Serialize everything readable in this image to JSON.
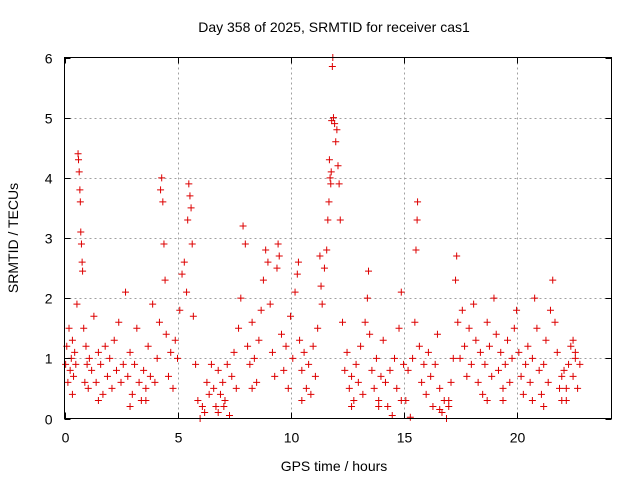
{
  "chart_data": {
    "type": "scatter",
    "title": "Day 358 of 2025, SRMTID for receiver cas1",
    "xlabel": "GPS time / hours",
    "ylabel": "SRMTID / TECUs",
    "xlim": [
      0,
      24.2
    ],
    "ylim": [
      0,
      6
    ],
    "xticks": [
      0,
      5,
      10,
      15,
      20
    ],
    "xtick_labels": [
      "0",
      "5",
      "10",
      "15",
      "20"
    ],
    "yticks": [
      0,
      1,
      2,
      3,
      4,
      5,
      6
    ],
    "ytick_labels": [
      "0",
      "1",
      "2",
      "3",
      "4",
      "5",
      "6"
    ],
    "grid": true,
    "marker": "plus",
    "color": "#dd0000",
    "series": [
      {
        "name": "SRMTID",
        "points": [
          [
            0.05,
            0.9
          ],
          [
            0.1,
            1.2
          ],
          [
            0.15,
            0.6
          ],
          [
            0.2,
            1.5
          ],
          [
            0.25,
            0.8
          ],
          [
            0.3,
            1.0
          ],
          [
            0.35,
            1.3
          ],
          [
            0.4,
            0.7
          ],
          [
            0.45,
            1.1
          ],
          [
            0.5,
            0.9
          ],
          [
            0.55,
            1.9
          ],
          [
            0.6,
            4.4
          ],
          [
            0.62,
            4.3
          ],
          [
            0.65,
            4.1
          ],
          [
            0.68,
            3.8
          ],
          [
            0.7,
            3.6
          ],
          [
            0.72,
            3.1
          ],
          [
            0.75,
            2.9
          ],
          [
            0.78,
            2.6
          ],
          [
            0.8,
            2.45
          ],
          [
            0.85,
            1.5
          ],
          [
            0.9,
            0.6
          ],
          [
            0.95,
            1.2
          ],
          [
            1.0,
            0.9
          ],
          [
            1.05,
            0.5
          ],
          [
            1.1,
            1.0
          ],
          [
            1.2,
            0.8
          ],
          [
            1.3,
            1.7
          ],
          [
            1.4,
            0.6
          ],
          [
            1.5,
            1.1
          ],
          [
            1.6,
            0.9
          ],
          [
            1.7,
            0.4
          ],
          [
            1.8,
            1.2
          ],
          [
            1.9,
            0.7
          ],
          [
            2.0,
            1.0
          ],
          [
            2.1,
            0.5
          ],
          [
            2.2,
            1.3
          ],
          [
            2.3,
            0.8
          ],
          [
            2.4,
            1.6
          ],
          [
            2.5,
            0.6
          ],
          [
            2.6,
            0.9
          ],
          [
            2.7,
            2.1
          ],
          [
            2.8,
            0.7
          ],
          [
            2.9,
            1.1
          ],
          [
            3.0,
            0.4
          ],
          [
            3.1,
            0.9
          ],
          [
            3.2,
            1.5
          ],
          [
            3.3,
            0.6
          ],
          [
            3.4,
            0.3
          ],
          [
            3.5,
            0.8
          ],
          [
            3.6,
            0.5
          ],
          [
            3.7,
            1.2
          ],
          [
            3.8,
            0.7
          ],
          [
            3.9,
            1.9
          ],
          [
            4.0,
            0.6
          ],
          [
            4.1,
            1.0
          ],
          [
            4.2,
            1.6
          ],
          [
            4.25,
            3.8
          ],
          [
            4.3,
            4.0
          ],
          [
            4.35,
            3.6
          ],
          [
            4.4,
            2.9
          ],
          [
            4.45,
            2.3
          ],
          [
            4.5,
            1.4
          ],
          [
            4.6,
            0.7
          ],
          [
            4.7,
            1.1
          ],
          [
            4.8,
            0.5
          ],
          [
            4.9,
            1.3
          ],
          [
            5.0,
            1.0
          ],
          [
            5.1,
            1.8
          ],
          [
            5.2,
            2.4
          ],
          [
            5.3,
            2.6
          ],
          [
            5.4,
            2.1
          ],
          [
            5.45,
            3.3
          ],
          [
            5.5,
            3.9
          ],
          [
            5.55,
            3.7
          ],
          [
            5.6,
            3.5
          ],
          [
            5.65,
            2.9
          ],
          [
            5.7,
            1.7
          ],
          [
            5.8,
            0.9
          ],
          [
            5.9,
            0.3
          ],
          [
            6.0,
            0.0
          ],
          [
            6.1,
            0.2
          ],
          [
            6.2,
            0.1
          ],
          [
            6.3,
            0.6
          ],
          [
            6.4,
            0.4
          ],
          [
            6.5,
            0.9
          ],
          [
            6.6,
            0.5
          ],
          [
            6.7,
            0.2
          ],
          [
            6.8,
            0.8
          ],
          [
            6.9,
            0.4
          ],
          [
            7.0,
            0.6
          ],
          [
            7.1,
            0.3
          ],
          [
            7.2,
            0.9
          ],
          [
            7.3,
            0.05
          ],
          [
            7.4,
            0.7
          ],
          [
            7.5,
            1.1
          ],
          [
            7.6,
            0.5
          ],
          [
            7.7,
            1.5
          ],
          [
            7.8,
            2.0
          ],
          [
            7.9,
            3.2
          ],
          [
            8.0,
            2.9
          ],
          [
            8.1,
            1.2
          ],
          [
            8.2,
            0.9
          ],
          [
            8.3,
            1.6
          ],
          [
            8.4,
            1.0
          ],
          [
            8.5,
            0.6
          ],
          [
            8.6,
            1.3
          ],
          [
            8.7,
            1.8
          ],
          [
            8.8,
            2.3
          ],
          [
            8.9,
            2.8
          ],
          [
            9.0,
            2.6
          ],
          [
            9.1,
            1.9
          ],
          [
            9.2,
            1.1
          ],
          [
            9.3,
            0.7
          ],
          [
            9.4,
            2.5
          ],
          [
            9.45,
            2.9
          ],
          [
            9.5,
            2.7
          ],
          [
            9.6,
            1.4
          ],
          [
            9.7,
            0.8
          ],
          [
            9.8,
            1.2
          ],
          [
            9.9,
            0.5
          ],
          [
            10.0,
            1.7
          ],
          [
            10.1,
            1.0
          ],
          [
            10.2,
            2.1
          ],
          [
            10.3,
            2.4
          ],
          [
            10.35,
            2.6
          ],
          [
            10.4,
            1.3
          ],
          [
            10.5,
            0.8
          ],
          [
            10.6,
            1.1
          ],
          [
            10.7,
            0.5
          ],
          [
            10.8,
            0.9
          ],
          [
            10.9,
            0.4
          ],
          [
            11.0,
            1.2
          ],
          [
            11.1,
            0.7
          ],
          [
            11.2,
            1.5
          ],
          [
            11.3,
            2.7
          ],
          [
            11.35,
            2.2
          ],
          [
            11.4,
            1.9
          ],
          [
            11.5,
            2.5
          ],
          [
            11.6,
            2.8
          ],
          [
            11.65,
            3.3
          ],
          [
            11.7,
            3.6
          ],
          [
            11.72,
            4.3
          ],
          [
            11.75,
            4.0
          ],
          [
            11.78,
            3.9
          ],
          [
            11.8,
            4.1
          ],
          [
            11.82,
            4.95
          ],
          [
            11.85,
            5.85
          ],
          [
            11.87,
            6.0
          ],
          [
            11.9,
            5.0
          ],
          [
            11.95,
            4.9
          ],
          [
            12.0,
            4.6
          ],
          [
            12.05,
            4.8
          ],
          [
            12.1,
            4.2
          ],
          [
            12.15,
            3.9
          ],
          [
            12.2,
            3.3
          ],
          [
            12.3,
            1.6
          ],
          [
            12.4,
            0.8
          ],
          [
            12.5,
            1.1
          ],
          [
            12.6,
            0.5
          ],
          [
            12.7,
            0.7
          ],
          [
            12.8,
            0.3
          ],
          [
            12.9,
            0.9
          ],
          [
            13.0,
            0.6
          ],
          [
            13.1,
            1.2
          ],
          [
            13.2,
            0.4
          ],
          [
            13.3,
            1.6
          ],
          [
            13.4,
            2.0
          ],
          [
            13.45,
            2.45
          ],
          [
            13.5,
            1.4
          ],
          [
            13.6,
            0.8
          ],
          [
            13.7,
            0.5
          ],
          [
            13.8,
            1.0
          ],
          [
            13.9,
            0.3
          ],
          [
            14.0,
            0.7
          ],
          [
            14.1,
            1.3
          ],
          [
            14.2,
            0.6
          ],
          [
            14.3,
            0.2
          ],
          [
            14.4,
            0.8
          ],
          [
            14.5,
            0.05
          ],
          [
            14.6,
            1.0
          ],
          [
            14.7,
            0.5
          ],
          [
            14.8,
            1.5
          ],
          [
            14.9,
            2.1
          ],
          [
            15.0,
            0.9
          ],
          [
            15.1,
            0.3
          ],
          [
            15.2,
            0.8
          ],
          [
            15.3,
            0.02
          ],
          [
            15.4,
            1.0
          ],
          [
            15.5,
            1.6
          ],
          [
            15.55,
            2.8
          ],
          [
            15.6,
            3.3
          ],
          [
            15.62,
            3.6
          ],
          [
            15.7,
            1.2
          ],
          [
            15.8,
            0.6
          ],
          [
            15.9,
            0.9
          ],
          [
            16.0,
            0.4
          ],
          [
            16.1,
            1.1
          ],
          [
            16.2,
            0.7
          ],
          [
            16.3,
            0.2
          ],
          [
            16.4,
            0.9
          ],
          [
            16.5,
            1.4
          ],
          [
            16.6,
            0.5
          ],
          [
            16.7,
            0.1
          ],
          [
            16.8,
            0.3
          ],
          [
            16.9,
            0.0
          ],
          [
            17.0,
            0.2
          ],
          [
            17.1,
            0.6
          ],
          [
            17.2,
            1.0
          ],
          [
            17.3,
            2.3
          ],
          [
            17.35,
            2.7
          ],
          [
            17.4,
            1.6
          ],
          [
            17.5,
            1.0
          ],
          [
            17.6,
            1.8
          ],
          [
            17.7,
            1.2
          ],
          [
            17.8,
            0.7
          ],
          [
            17.9,
            1.5
          ],
          [
            18.0,
            0.9
          ],
          [
            18.1,
            1.9
          ],
          [
            18.2,
            1.3
          ],
          [
            18.3,
            0.6
          ],
          [
            18.4,
            1.1
          ],
          [
            18.5,
            0.4
          ],
          [
            18.6,
            0.9
          ],
          [
            18.7,
            1.6
          ],
          [
            18.8,
            1.2
          ],
          [
            18.9,
            0.7
          ],
          [
            19.0,
            2.0
          ],
          [
            19.1,
            1.4
          ],
          [
            19.2,
            0.8
          ],
          [
            19.3,
            1.1
          ],
          [
            19.4,
            0.5
          ],
          [
            19.5,
            0.9
          ],
          [
            19.6,
            1.3
          ],
          [
            19.7,
            0.6
          ],
          [
            19.8,
            1.0
          ],
          [
            19.9,
            1.5
          ],
          [
            20.0,
            1.8
          ],
          [
            20.1,
            1.1
          ],
          [
            20.2,
            0.7
          ],
          [
            20.3,
            0.4
          ],
          [
            20.4,
            0.9
          ],
          [
            20.5,
            1.2
          ],
          [
            20.6,
            0.6
          ],
          [
            20.7,
            1.0
          ],
          [
            20.8,
            2.0
          ],
          [
            20.9,
            1.5
          ],
          [
            21.0,
            0.8
          ],
          [
            21.1,
            0.4
          ],
          [
            21.2,
            0.9
          ],
          [
            21.3,
            1.3
          ],
          [
            21.4,
            0.6
          ],
          [
            21.5,
            1.8
          ],
          [
            21.6,
            2.3
          ],
          [
            21.7,
            1.6
          ],
          [
            21.8,
            1.1
          ],
          [
            21.9,
            0.5
          ],
          [
            22.0,
            0.3
          ],
          [
            22.1,
            0.8
          ],
          [
            22.2,
            0.5
          ],
          [
            22.3,
            0.9
          ],
          [
            22.4,
            1.2
          ],
          [
            22.5,
            0.7
          ],
          [
            22.6,
            1.0
          ],
          [
            22.7,
            0.5
          ],
          [
            22.8,
            0.9
          ],
          [
            22.5,
            1.3
          ],
          [
            22.6,
            1.1
          ],
          [
            22.2,
            0.3
          ],
          [
            22.0,
            0.7
          ],
          [
            0.35,
            0.4
          ],
          [
            1.5,
            0.3
          ],
          [
            2.9,
            0.2
          ],
          [
            3.6,
            0.3
          ],
          [
            6.8,
            0.1
          ],
          [
            7.05,
            0.2
          ],
          [
            8.3,
            0.5
          ],
          [
            10.5,
            0.3
          ],
          [
            12.7,
            0.2
          ],
          [
            13.9,
            0.2
          ],
          [
            14.9,
            0.3
          ],
          [
            16.6,
            0.15
          ],
          [
            17.0,
            0.3
          ],
          [
            18.7,
            0.3
          ],
          [
            19.4,
            0.3
          ],
          [
            20.7,
            0.3
          ],
          [
            21.2,
            0.2
          ]
        ]
      }
    ]
  }
}
